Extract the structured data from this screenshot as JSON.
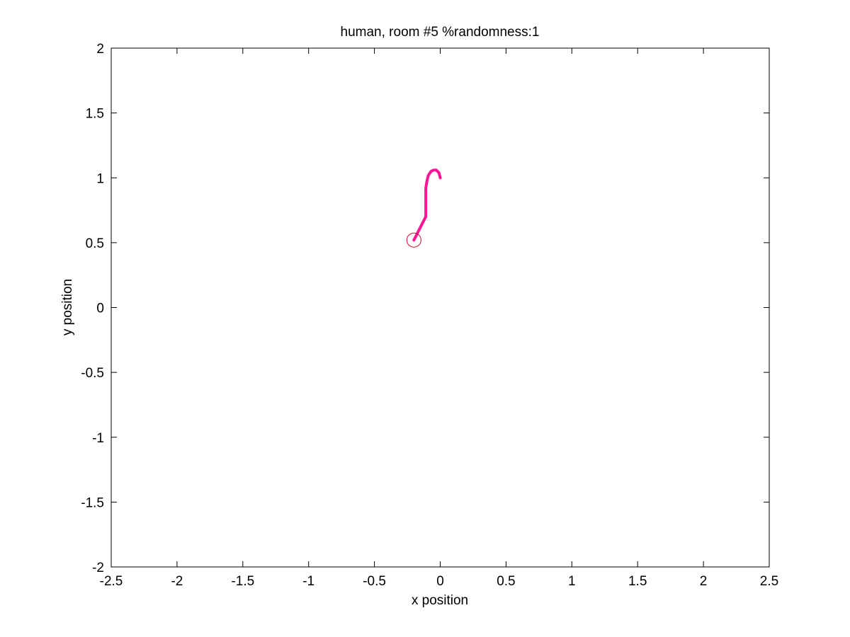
{
  "chart_data": {
    "type": "line",
    "title": "human, room #5 %randomness:1",
    "xlabel": "x position",
    "ylabel": "y position",
    "xlim": [
      -2.5,
      2.5
    ],
    "ylim": [
      -2,
      2
    ],
    "xticks": [
      -2.5,
      -2,
      -1.5,
      -1,
      -0.5,
      0,
      0.5,
      1,
      1.5,
      2,
      2.5
    ],
    "xtick_labels": [
      "-2.5",
      "-2",
      "-1.5",
      "-1",
      "-0.5",
      "0",
      "0.5",
      "1",
      "1.5",
      "2",
      "2.5"
    ],
    "yticks": [
      -2,
      -1.5,
      -1,
      -0.5,
      0,
      0.5,
      1,
      1.5,
      2
    ],
    "ytick_labels": [
      "-2",
      "-1.5",
      "-1",
      "-0.5",
      "0",
      "0.5",
      "1",
      "1.5",
      "2"
    ],
    "grid": false,
    "series": [
      {
        "color": "#ff1493",
        "x": [
          0.0,
          -0.01,
          -0.03,
          -0.05,
          -0.07,
          -0.09,
          -0.1,
          -0.11,
          -0.11,
          -0.11,
          -0.11,
          -0.12,
          -0.15,
          -0.18,
          -0.2
        ],
        "y": [
          1.0,
          1.04,
          1.06,
          1.06,
          1.05,
          1.02,
          0.98,
          0.92,
          0.85,
          0.78,
          0.7,
          0.68,
          0.62,
          0.56,
          0.52
        ]
      }
    ],
    "markers": [
      {
        "type": "circle",
        "x": -0.2,
        "y": 0.52,
        "color": "#c8102e"
      }
    ]
  }
}
